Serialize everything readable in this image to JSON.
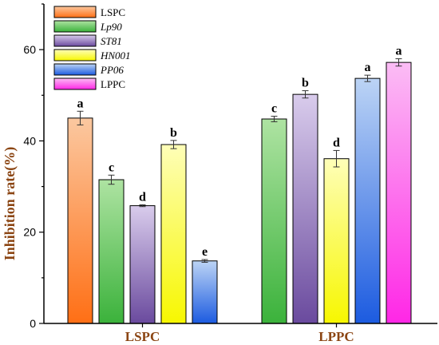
{
  "chart_data": {
    "type": "bar",
    "title": "",
    "xlabel": "",
    "ylabel": "Inhibition rate(%)",
    "ylim": [
      0,
      70
    ],
    "yticks": [
      0,
      20,
      40,
      60
    ],
    "categories": [
      "LSPC",
      "LPPC"
    ],
    "legend_position": "top-left",
    "grid": false,
    "series": [
      {
        "name": "LSPC",
        "italic": false,
        "color_light": "#fbc8a0",
        "color_dark": "#ff6f15",
        "values": [
          45.0,
          null
        ],
        "errors": [
          1.5,
          null
        ],
        "labels": [
          "a",
          ""
        ]
      },
      {
        "name": "Lp90",
        "italic": true,
        "color_light": "#aee3a2",
        "color_dark": "#3bb23b",
        "values": [
          31.5,
          44.8
        ],
        "errors": [
          1.0,
          0.6
        ],
        "labels": [
          "c",
          "c"
        ]
      },
      {
        "name": "ST81",
        "italic": true,
        "color_light": "#d9ccec",
        "color_dark": "#6a4a9e",
        "values": [
          25.8,
          50.2
        ],
        "errors": [
          0.2,
          0.8
        ],
        "labels": [
          "d",
          "b"
        ]
      },
      {
        "name": "HN001",
        "italic": true,
        "color_light": "#fefeb8",
        "color_dark": "#f7f700",
        "values": [
          39.2,
          36.1
        ],
        "errors": [
          0.9,
          1.8
        ],
        "labels": [
          "b",
          "d"
        ]
      },
      {
        "name": "PP06",
        "italic": true,
        "color_light": "#bcd4f5",
        "color_dark": "#1c5be0",
        "values": [
          13.7,
          53.7
        ],
        "errors": [
          0.3,
          0.7
        ],
        "labels": [
          "e",
          "a"
        ]
      },
      {
        "name": "LPPC",
        "italic": false,
        "color_light": "#fbbdf5",
        "color_dark": "#ff27e6",
        "values": [
          null,
          57.2
        ],
        "errors": [
          null,
          0.8
        ],
        "labels": [
          "",
          "a"
        ]
      }
    ],
    "axis_label_color": "#8b4513",
    "category_label_color": "#8b4513"
  }
}
